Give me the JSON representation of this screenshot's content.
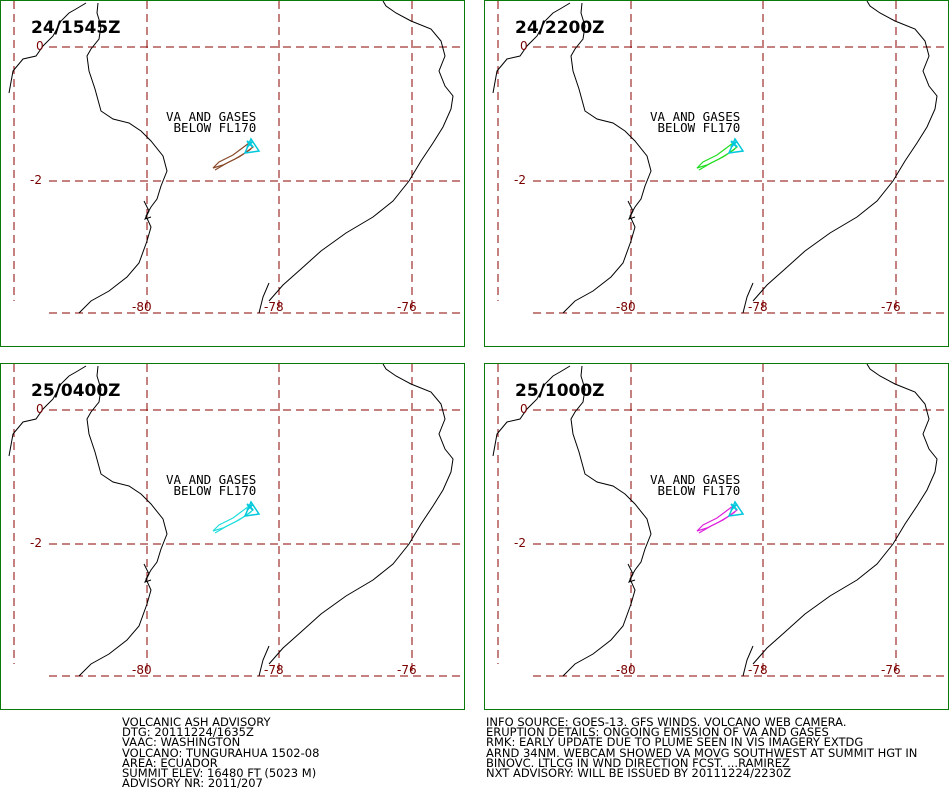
{
  "panels": [
    {
      "title": "24/1545Z",
      "plume_color": "#8a4a2a"
    },
    {
      "title": "24/2200Z",
      "plume_color": "#22dd22"
    },
    {
      "title": "25/0400Z",
      "plume_color": "#22dddd"
    },
    {
      "title": "25/1000Z",
      "plume_color": "#dd22dd"
    }
  ],
  "map": {
    "lat_labels": [
      "0",
      "-2"
    ],
    "lon_labels": [
      "-80",
      "-78",
      "-76"
    ],
    "note_line1": "VA AND GASES",
    "note_line2": "BELOW FL170",
    "grid_color": "#8b0000",
    "coast_color": "#000000",
    "volcano_color": "#00c8dc"
  },
  "advisory_left": [
    "VOLCANIC ASH ADVISORY",
    "DTG: 20111224/1635Z",
    "VAAC: WASHINGTON",
    "VOLCANO: TUNGURAHUA 1502-08",
    "AREA: ECUADOR",
    "SUMMIT ELEV: 16480 FT (5023 M)",
    "ADVISORY NR: 2011/207"
  ],
  "advisory_right": [
    "INFO SOURCE: GOES-13. GFS WINDS. VOLCANO WEB CAMERA.",
    "ERUPTION DETAILS: ONGOING EMISSION OF VA AND GASES",
    "RMK: EARLY UPDATE DUE TO PLUME SEEN IN VIS IMAGERY EXTDG",
    "ARND 34NM. WEBCAM SHOWED VA MOVG SOUTHWEST AT SUMMIT HGT IN",
    "BINOVC. LTLCG IN WND DIRECTION FCST. ...RAMIREZ",
    "NXT ADVISORY: WILL BE ISSUED BY 20111224/2230Z"
  ]
}
